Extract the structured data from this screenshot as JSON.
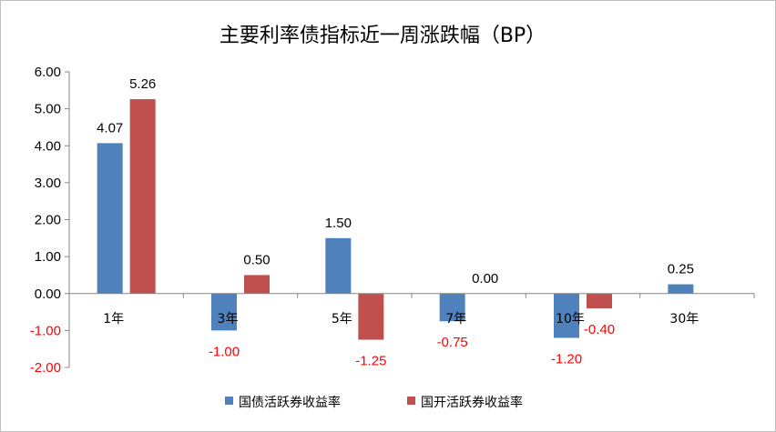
{
  "chart_data": {
    "type": "bar",
    "title": "主要利率债指标近一周涨跌幅（BP）",
    "categories": [
      "1年",
      "3年",
      "5年",
      "7年",
      "10年",
      "30年"
    ],
    "series": [
      {
        "name": "国债活跃券收益率",
        "color": "#4f81bd",
        "values": [
          4.07,
          -1.0,
          1.5,
          -0.75,
          -1.2,
          0.25
        ],
        "labels": [
          "4.07",
          "-1.00",
          "1.50",
          "-0.75",
          "-1.20",
          "0.25"
        ]
      },
      {
        "name": "国开活跃券收益率",
        "color": "#c0504d",
        "values": [
          5.26,
          0.5,
          -1.25,
          0.0,
          -0.4,
          null
        ],
        "labels": [
          "5.26",
          "0.50",
          "-1.25",
          "0.00",
          "-0.40",
          null
        ]
      }
    ],
    "ylim": [
      -2,
      6
    ],
    "yticks": [
      "6.00",
      "5.00",
      "4.00",
      "3.00",
      "2.00",
      "1.00",
      "0.00",
      "-1.00",
      "-2.00"
    ],
    "ytick_values": [
      6,
      5,
      4,
      3,
      2,
      1,
      0,
      -1,
      -2
    ],
    "xlabel": "",
    "ylabel": "",
    "grid": false,
    "legend_position": "bottom",
    "negative_label_color": "#ff0000",
    "positive_label_color": "#000000"
  }
}
